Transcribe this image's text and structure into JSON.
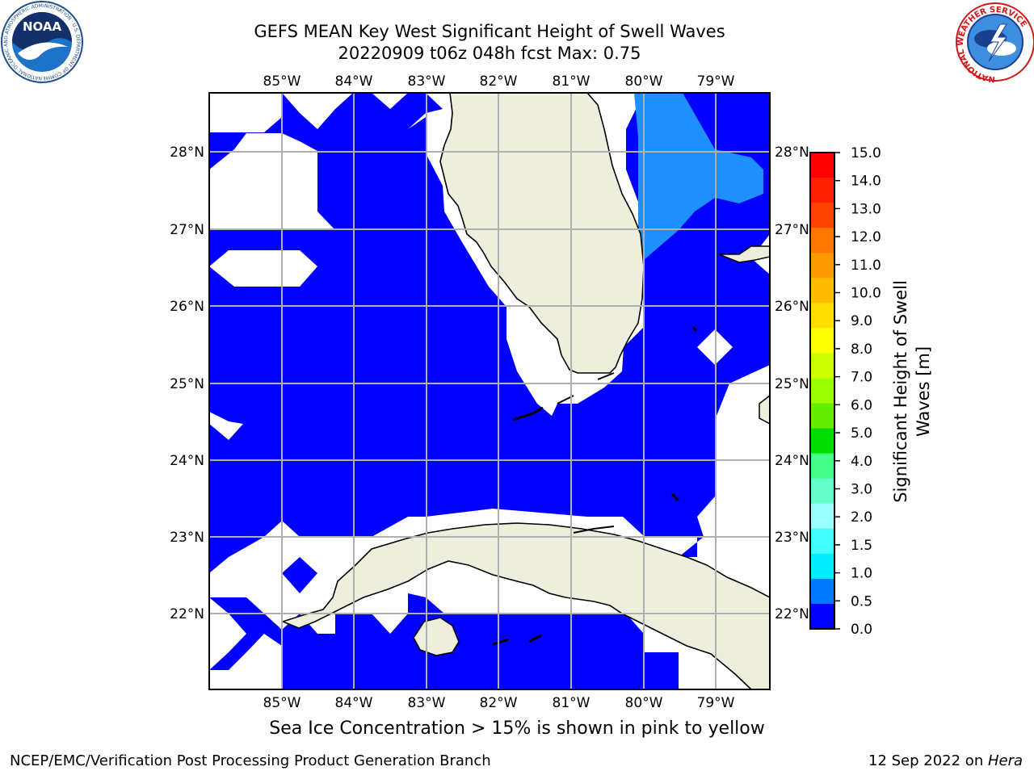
{
  "title": {
    "line1": "GEFS MEAN Key West Significant Height of Swell Waves",
    "line2": "20220909 t06z 048h fcst   Max: 0.75"
  },
  "map": {
    "lon_ticks_top": [
      "85°W",
      "84°W",
      "83°W",
      "82°W",
      "81°W",
      "80°W",
      "79°W"
    ],
    "lon_ticks_bottom": [
      "85°W",
      "84°W",
      "83°W",
      "82°W",
      "81°W",
      "80°W",
      "79°W"
    ],
    "lat_ticks_left": [
      "28°N",
      "27°N",
      "26°N",
      "25°N",
      "24°N",
      "23°N",
      "22°N"
    ],
    "lat_ticks_right": [
      "28°N",
      "27°N",
      "26°N",
      "25°N",
      "24°N",
      "23°N",
      "22°N"
    ],
    "region": "Florida Straits / Key West",
    "fill_colors": {
      "level_0": "#0000ff",
      "level_1": "#1e90ff",
      "land": "#eeeedd",
      "no_data": "#ffffff"
    }
  },
  "colorbar": {
    "title_line1": "Significant Height of Swell",
    "title_line2": "Waves [m]",
    "labels": [
      "15.0",
      "14.0",
      "13.0",
      "12.0",
      "11.0",
      "10.0",
      "9.0",
      "8.0",
      "7.0",
      "6.0",
      "5.0",
      "4.0",
      "3.0",
      "2.0",
      "1.5",
      "1.0",
      "0.5",
      "0.0"
    ],
    "colors": [
      "#ff0000",
      "#ff2200",
      "#ff4400",
      "#ff7700",
      "#ff9900",
      "#ffbb00",
      "#ffdd00",
      "#ffff00",
      "#ccff00",
      "#99ff00",
      "#66ee00",
      "#00dd00",
      "#44ff88",
      "#66ffcc",
      "#99ffff",
      "#44ffff",
      "#00eeff",
      "#0077ff",
      "#0000ff"
    ]
  },
  "logos": {
    "noaa": {
      "text": "NOAA",
      "ring_text": "NATIONAL OCEANIC AND ATMOSPHERIC ADMINISTRATION · U.S. DEPARTMENT OF COMMERCE"
    },
    "nws": {
      "ring_text": "NATIONAL WEATHER SERVICE"
    }
  },
  "footer": {
    "note": "Sea Ice Concentration > 15% is shown in pink to yellow",
    "credit": "NCEP/EMC/Verification Post Processing Product Generation Branch",
    "date": "12 Sep 2022 on ",
    "machine": "Hera"
  }
}
